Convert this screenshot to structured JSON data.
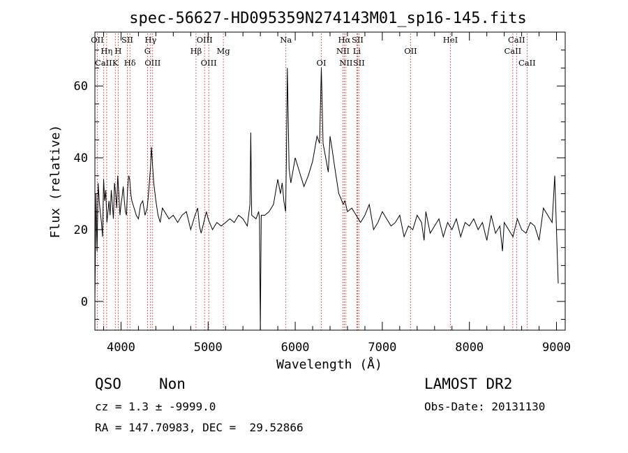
{
  "chart_data": {
    "type": "line",
    "title": "spec-56627-HD095359N274143M01_sp16-145.fits",
    "xlabel": "Wavelength (Å)",
    "ylabel": "Flux (relative)",
    "xlim": [
      3700,
      9100
    ],
    "ylim": [
      -8,
      75
    ],
    "x_ticks": [
      4000,
      5000,
      6000,
      7000,
      8000,
      9000
    ],
    "y_ticks": [
      0,
      20,
      40,
      60
    ],
    "grid": false,
    "line_color": "#000000",
    "marker_color": "#cc0000",
    "spectral_lines": [
      {
        "name": "OII",
        "x": 3727,
        "row": 0
      },
      {
        "name": "Hη",
        "x": 3835,
        "row": 1
      },
      {
        "name": "CaII",
        "x": 3799,
        "row": 2
      },
      {
        "name": "H",
        "x": 3968,
        "row": 1
      },
      {
        "name": "K",
        "x": 3934,
        "row": 2
      },
      {
        "name": "SII",
        "x": 4072,
        "row": 0
      },
      {
        "name": "Hδ",
        "x": 4102,
        "row": 2
      },
      {
        "name": "Hγ",
        "x": 4340,
        "row": 0
      },
      {
        "name": "G",
        "x": 4304,
        "row": 1
      },
      {
        "name": "OIII",
        "x": 4363,
        "row": 2
      },
      {
        "name": "OIII",
        "x": 4959,
        "row": 0
      },
      {
        "name": "Hβ",
        "x": 4861,
        "row": 1
      },
      {
        "name": "OIII",
        "x": 5007,
        "row": 2
      },
      {
        "name": "Mg",
        "x": 5175,
        "row": 1
      },
      {
        "name": "Na",
        "x": 5893,
        "row": 0
      },
      {
        "name": "OI",
        "x": 6300,
        "row": 2
      },
      {
        "name": "Hα",
        "x": 6563,
        "row": 0
      },
      {
        "name": "NII",
        "x": 6548,
        "row": 1
      },
      {
        "name": "NII",
        "x": 6583,
        "row": 2
      },
      {
        "name": "SII",
        "x": 6716,
        "row": 0
      },
      {
        "name": "Li",
        "x": 6708,
        "row": 1
      },
      {
        "name": "SII",
        "x": 6731,
        "row": 2
      },
      {
        "name": "OII",
        "x": 7325,
        "row": 1
      },
      {
        "name": "HeI",
        "x": 7782,
        "row": 0
      },
      {
        "name": "CaII",
        "x": 8542,
        "row": 0
      },
      {
        "name": "CaII",
        "x": 8498,
        "row": 1
      },
      {
        "name": "CaII",
        "x": 8662,
        "row": 2
      }
    ],
    "series": [
      {
        "x": [
          3700,
          3712,
          3725,
          3738,
          3750,
          3762,
          3775,
          3788,
          3800,
          3812,
          3825,
          3838,
          3850,
          3862,
          3875,
          3888,
          3900,
          3912,
          3925,
          3938,
          3950,
          3962,
          3975,
          3988,
          4000,
          4012,
          4025,
          4038,
          4050,
          4062,
          4075,
          4088,
          4100,
          4112,
          4125,
          4150,
          4175,
          4200,
          4225,
          4250,
          4275,
          4300,
          4312,
          4325,
          4338,
          4350,
          4362,
          4375,
          4400,
          4425,
          4450,
          4475,
          4500,
          4550,
          4600,
          4650,
          4700,
          4750,
          4800,
          4850,
          4880,
          4900,
          4920,
          4950,
          4980,
          5000,
          5050,
          5100,
          5150,
          5200,
          5250,
          5300,
          5350,
          5400,
          5450,
          5480,
          5490,
          5500,
          5550,
          5580,
          5590,
          5600,
          5610,
          5650,
          5700,
          5750,
          5800,
          5830,
          5850,
          5870,
          5890,
          5900,
          5910,
          5930,
          5950,
          6000,
          6050,
          6100,
          6150,
          6200,
          6250,
          6280,
          6300,
          6320,
          6350,
          6380,
          6400,
          6420,
          6450,
          6500,
          6520,
          6550,
          6570,
          6600,
          6650,
          6700,
          6750,
          6800,
          6850,
          6900,
          6950,
          7000,
          7050,
          7100,
          7150,
          7200,
          7250,
          7300,
          7350,
          7400,
          7450,
          7480,
          7500,
          7550,
          7600,
          7650,
          7700,
          7750,
          7800,
          7850,
          7900,
          7950,
          8000,
          8050,
          8100,
          8150,
          8200,
          8250,
          8300,
          8350,
          8380,
          8400,
          8450,
          8500,
          8550,
          8600,
          8650,
          8700,
          8750,
          8800,
          8850,
          8900,
          8950,
          8980,
          9000,
          9020
        ],
        "y": [
          0,
          30,
          14,
          33,
          28,
          25,
          22,
          18,
          34,
          28,
          31,
          22,
          25,
          28,
          24,
          31,
          27,
          23,
          33,
          30,
          26,
          35,
          30,
          24,
          27,
          29,
          32,
          28,
          25,
          24,
          31,
          35,
          34,
          30,
          28,
          26,
          24,
          23,
          27,
          28,
          24,
          26,
          29,
          33,
          37,
          43,
          38,
          33,
          28,
          24,
          22,
          26,
          25,
          23,
          24,
          22,
          24,
          25,
          20,
          24,
          26,
          21,
          19,
          22,
          25,
          23,
          20,
          22,
          21,
          22,
          23,
          22,
          24,
          23,
          21,
          27,
          47,
          24,
          23,
          25,
          23,
          -8,
          24,
          24,
          25,
          27,
          34,
          30,
          33,
          28,
          25,
          42,
          65,
          37,
          33,
          40,
          36,
          32,
          35,
          39,
          46,
          44,
          65,
          44,
          40,
          36,
          46,
          43,
          38,
          30,
          29,
          27,
          28,
          25,
          26,
          24,
          22,
          24,
          27,
          20,
          22,
          25,
          23,
          21,
          22,
          24,
          18,
          21,
          20,
          24,
          22,
          17,
          25,
          19,
          21,
          23,
          18,
          22,
          20,
          23,
          18,
          22,
          21,
          23,
          20,
          22,
          17,
          24,
          19,
          21,
          14,
          22,
          20,
          18,
          23,
          20,
          19,
          22,
          21,
          17,
          26,
          24,
          22,
          35,
          20,
          5
        ]
      }
    ],
    "info": {
      "class": "QSO",
      "subclass": "Non",
      "survey": "LAMOST DR2",
      "cz": "cz = 1.3 ± -9999.0",
      "obs_date": "Obs-Date: 20131130",
      "coords": "RA = 147.70983, DEC =  29.52866"
    }
  }
}
